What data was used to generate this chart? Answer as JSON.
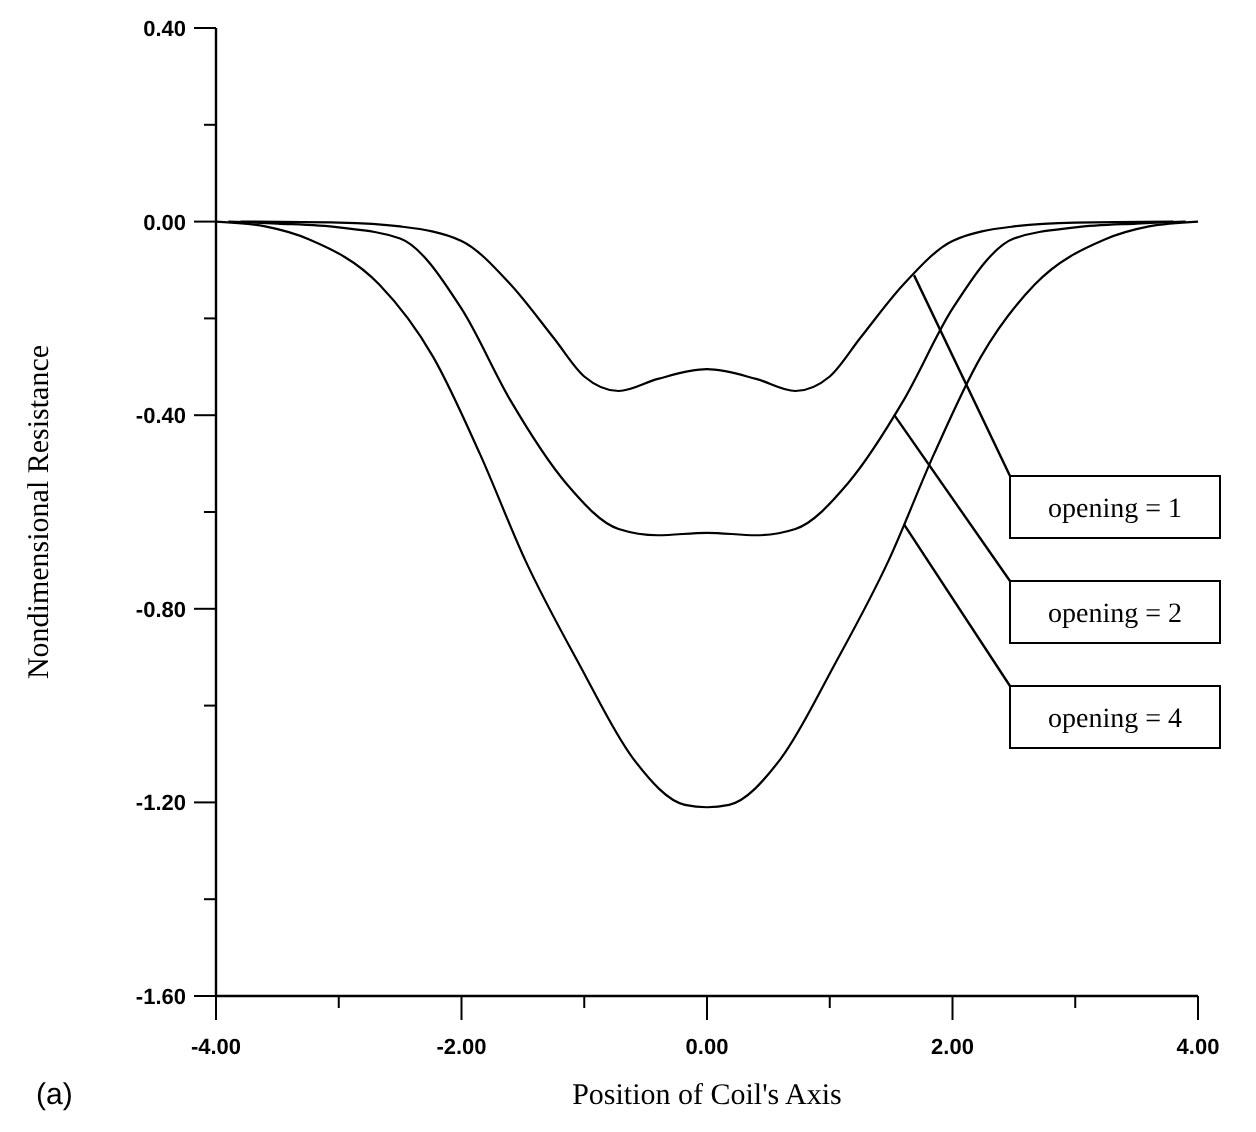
{
  "chart_data": {
    "type": "line",
    "xlabel": "Position of Coil's Axis",
    "ylabel": "Nondimensional Resistance",
    "xlim": [
      -4,
      4
    ],
    "ylim": [
      -1.6,
      0.4
    ],
    "xticks": [
      {
        "value": -4,
        "label": "-4.00"
      },
      {
        "value": -3,
        "label": null
      },
      {
        "value": -2,
        "label": "-2.00"
      },
      {
        "value": -1,
        "label": null
      },
      {
        "value": 0,
        "label": "0.00"
      },
      {
        "value": 1,
        "label": null
      },
      {
        "value": 2,
        "label": "2.00"
      },
      {
        "value": 3,
        "label": null
      },
      {
        "value": 4,
        "label": "4.00"
      }
    ],
    "yticks": [
      {
        "value": 0.4,
        "label": "0.40"
      },
      {
        "value": 0.2,
        "label": null
      },
      {
        "value": 0,
        "label": "0.00"
      },
      {
        "value": -0.2,
        "label": null
      },
      {
        "value": -0.4,
        "label": "-0.40"
      },
      {
        "value": -0.6,
        "label": null
      },
      {
        "value": -0.8,
        "label": "-0.80"
      },
      {
        "value": -1,
        "label": null
      },
      {
        "value": -1.2,
        "label": "-1.20"
      },
      {
        "value": -1.4,
        "label": null
      },
      {
        "value": -1.6,
        "label": "-1.60"
      }
    ],
    "grid": false,
    "marker": "none",
    "line_style": "solid",
    "series": [
      {
        "name": "opening = 1",
        "color": "#000000",
        "x": [
          -3.8,
          -3,
          -2.5,
          -2,
          -1.6,
          -1.25,
          -1,
          -0.72,
          -0.4,
          0,
          0.4,
          0.72,
          1,
          1.25,
          1.6,
          2,
          2.5,
          3,
          3.8
        ],
        "values": [
          0,
          -0.002,
          -0.01,
          -0.04,
          -0.13,
          -0.24,
          -0.32,
          -0.35,
          -0.325,
          -0.305,
          -0.325,
          -0.35,
          -0.32,
          -0.24,
          -0.13,
          -0.04,
          -0.01,
          -0.002,
          0
        ]
      },
      {
        "name": "opening = 2",
        "color": "#000000",
        "x": [
          -3.9,
          -3.5,
          -3,
          -2.5,
          -2,
          -1.6,
          -1.15,
          -0.72,
          -0.4,
          0,
          0.4,
          0.72,
          1.15,
          1.6,
          2,
          2.5,
          3,
          3.5,
          3.9
        ],
        "values": [
          0,
          -0.004,
          -0.012,
          -0.035,
          -0.18,
          -0.37,
          -0.54,
          -0.635,
          -0.648,
          -0.643,
          -0.648,
          -0.635,
          -0.54,
          -0.37,
          -0.18,
          -0.035,
          -0.012,
          -0.004,
          0
        ]
      },
      {
        "name": "opening = 4",
        "color": "#000000",
        "x": [
          -4,
          -3.6,
          -3.24,
          -2.67,
          -2.23,
          -1.85,
          -1.48,
          -1.04,
          -0.6,
          -0.18,
          0,
          0.18,
          0.6,
          1.04,
          1.48,
          1.85,
          2.23,
          2.67,
          3.24,
          3.6,
          4
        ],
        "values": [
          0,
          -0.01,
          -0.037,
          -0.13,
          -0.28,
          -0.48,
          -0.7,
          -0.915,
          -1.11,
          -1.205,
          -1.21,
          -1.205,
          -1.11,
          -0.915,
          -0.7,
          -0.48,
          -0.28,
          -0.13,
          -0.037,
          -0.01,
          0
        ]
      }
    ],
    "annotations": [
      "(a)"
    ]
  }
}
